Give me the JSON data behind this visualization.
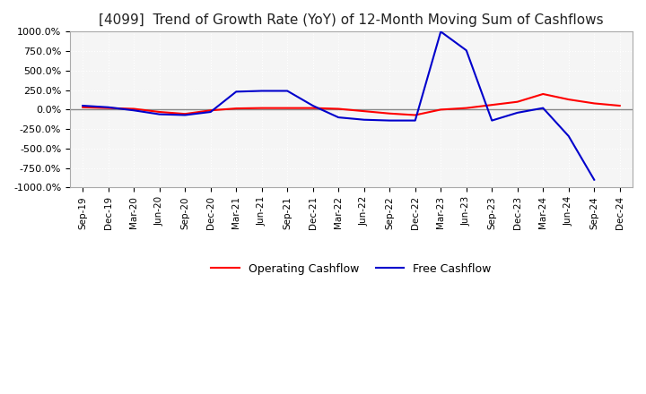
{
  "title": "[4099]  Trend of Growth Rate (YoY) of 12-Month Moving Sum of Cashflows",
  "title_fontsize": 11,
  "ylim": [
    -1000,
    1000
  ],
  "yticks": [
    -1000,
    -750,
    -500,
    -250,
    0,
    250,
    500,
    750,
    1000
  ],
  "ytick_labels": [
    "-1000.0%",
    "-750.0%",
    "-500.0%",
    "-250.0%",
    "0.0%",
    "250.0%",
    "500.0%",
    "750.0%",
    "1000.0%"
  ],
  "background_color": "#ffffff",
  "plot_background_color": "#f5f5f5",
  "grid_color": "#ffffff",
  "operating_color": "#ff0000",
  "free_color": "#0000cc",
  "x_labels": [
    "Sep-19",
    "Dec-19",
    "Mar-20",
    "Jun-20",
    "Sep-20",
    "Dec-20",
    "Mar-21",
    "Jun-21",
    "Sep-21",
    "Dec-21",
    "Mar-22",
    "Jun-22",
    "Sep-22",
    "Dec-22",
    "Mar-23",
    "Jun-23",
    "Sep-23",
    "Dec-23",
    "Mar-24",
    "Jun-24",
    "Sep-24",
    "Dec-24"
  ],
  "operating_cashflow": [
    30,
    20,
    10,
    -30,
    -55,
    -10,
    15,
    20,
    20,
    20,
    10,
    -20,
    -50,
    -70,
    0,
    20,
    60,
    100,
    200,
    130,
    80,
    50
  ],
  "free_cashflow": [
    50,
    30,
    -10,
    -60,
    -70,
    -30,
    230,
    240,
    240,
    50,
    -100,
    -130,
    -140,
    -140,
    1000,
    760,
    -140,
    -40,
    20,
    -340,
    -900,
    null
  ]
}
